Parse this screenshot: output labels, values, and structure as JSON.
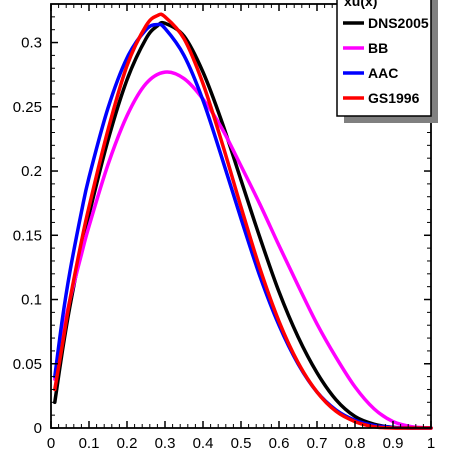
{
  "chart_data": {
    "type": "line",
    "xlim": [
      0,
      1
    ],
    "ylim": [
      0,
      0.33
    ],
    "x_ticks": [
      "0",
      "0.1",
      "0.2",
      "0.3",
      "0.4",
      "0.5",
      "0.6",
      "0.7",
      "0.8",
      "0.9",
      "1"
    ],
    "y_ticks": [
      "0",
      "0.05",
      "0.1",
      "0.15",
      "0.2",
      "0.25",
      "0.3"
    ],
    "grid": false,
    "legend_placement": "top-right",
    "legend_title": "xu(x)",
    "series": [
      {
        "name": "DNS2005",
        "color": "#000000",
        "x": [
          0.01,
          0.03,
          0.05,
          0.08,
          0.1,
          0.15,
          0.2,
          0.25,
          0.28,
          0.3,
          0.35,
          0.4,
          0.45,
          0.5,
          0.55,
          0.6,
          0.65,
          0.7,
          0.75,
          0.8,
          0.85,
          0.9,
          0.95,
          1.0
        ],
        "y": [
          0.02,
          0.06,
          0.095,
          0.14,
          0.166,
          0.224,
          0.271,
          0.303,
          0.313,
          0.315,
          0.305,
          0.277,
          0.238,
          0.193,
          0.148,
          0.106,
          0.071,
          0.043,
          0.022,
          0.009,
          0.003,
          0.0005,
          0.0,
          0.0
        ]
      },
      {
        "name": "BB",
        "color": "#ff00ff",
        "x": [
          0.01,
          0.03,
          0.05,
          0.08,
          0.1,
          0.15,
          0.2,
          0.25,
          0.3,
          0.35,
          0.4,
          0.45,
          0.5,
          0.55,
          0.6,
          0.65,
          0.7,
          0.75,
          0.8,
          0.85,
          0.9,
          0.95,
          1.0
        ],
        "y": [
          0.038,
          0.072,
          0.1,
          0.135,
          0.157,
          0.205,
          0.243,
          0.268,
          0.277,
          0.272,
          0.256,
          0.233,
          0.204,
          0.174,
          0.142,
          0.111,
          0.081,
          0.055,
          0.032,
          0.015,
          0.005,
          0.001,
          0.0
        ]
      },
      {
        "name": "AAC",
        "color": "#0000ff",
        "x": [
          0.01,
          0.03,
          0.05,
          0.08,
          0.1,
          0.15,
          0.2,
          0.25,
          0.28,
          0.3,
          0.35,
          0.4,
          0.45,
          0.5,
          0.55,
          0.6,
          0.65,
          0.7,
          0.75,
          0.8,
          0.85,
          0.9,
          0.95,
          1.0
        ],
        "y": [
          0.04,
          0.085,
          0.122,
          0.168,
          0.195,
          0.249,
          0.288,
          0.31,
          0.314,
          0.311,
          0.29,
          0.255,
          0.21,
          0.163,
          0.118,
          0.08,
          0.05,
          0.028,
          0.014,
          0.006,
          0.002,
          0.0005,
          0.0,
          0.0
        ]
      },
      {
        "name": "GS1996",
        "color": "#ff0000",
        "x": [
          0.01,
          0.03,
          0.05,
          0.08,
          0.1,
          0.15,
          0.2,
          0.25,
          0.28,
          0.3,
          0.35,
          0.4,
          0.45,
          0.5,
          0.55,
          0.6,
          0.65,
          0.7,
          0.75,
          0.8,
          0.85,
          0.9,
          0.95,
          1.0
        ],
        "y": [
          0.03,
          0.065,
          0.1,
          0.145,
          0.172,
          0.232,
          0.282,
          0.313,
          0.321,
          0.32,
          0.303,
          0.268,
          0.222,
          0.172,
          0.124,
          0.083,
          0.051,
          0.028,
          0.013,
          0.005,
          0.001,
          0.0,
          0.0,
          0.0
        ]
      }
    ]
  }
}
